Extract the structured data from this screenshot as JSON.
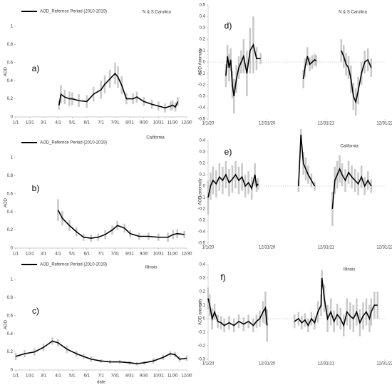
{
  "chart_data": [
    {
      "type": "line",
      "panel_label": "a)",
      "annotation": "N & S Carolina",
      "y_label": "AOD",
      "error_color": "#c8c8c8",
      "xlim": [
        1,
        364
      ],
      "xticks": [
        {
          "value": 1,
          "label": "1/1"
        },
        {
          "value": 31,
          "label": "1/31"
        },
        {
          "value": 60,
          "label": "3/1"
        },
        {
          "value": 91,
          "label": "4/1"
        },
        {
          "value": 121,
          "label": "5/1"
        },
        {
          "value": 152,
          "label": "6/1"
        },
        {
          "value": 182,
          "label": "7/1"
        },
        {
          "value": 212,
          "label": "7/31"
        },
        {
          "value": 243,
          "label": "8/31"
        },
        {
          "value": 273,
          "label": "9/30"
        },
        {
          "value": 304,
          "label": "10/31"
        },
        {
          "value": 334,
          "label": "11/30"
        },
        {
          "value": 364,
          "label": "12/30"
        }
      ],
      "ylim": [
        0,
        1
      ],
      "yticks": [
        0,
        0.2,
        0.4,
        0.6,
        0.8,
        1
      ],
      "x": [
        93,
        97,
        105,
        115,
        121,
        135,
        152,
        166,
        182,
        190,
        201,
        212,
        218,
        226,
        236,
        250,
        258,
        273,
        290,
        304,
        318,
        330,
        334,
        340,
        345
      ],
      "series": [
        {
          "name": "AOD_Refernce Period (2010-2019)",
          "color": "#000000",
          "values": [
            0.13,
            0.25,
            0.22,
            0.2,
            0.2,
            0.18,
            0.17,
            0.25,
            0.3,
            0.36,
            0.42,
            0.48,
            0.44,
            0.35,
            0.2,
            0.2,
            0.22,
            0.17,
            0.14,
            0.12,
            0.1,
            0.12,
            0.13,
            0.11,
            0.17
          ],
          "error": [
            0.05,
            0.1,
            0.08,
            0.08,
            0.07,
            0.07,
            0.07,
            0.08,
            0.1,
            0.1,
            0.1,
            0.12,
            0.12,
            0.1,
            0.06,
            0.06,
            0.06,
            0.05,
            0.05,
            0.05,
            0.05,
            0.05,
            0.05,
            0.05,
            0.05
          ]
        }
      ]
    },
    {
      "type": "line",
      "panel_label": "b)",
      "annotation": "California",
      "y_label": "AOD",
      "error_color": "#c8c8c8",
      "xlim": [
        1,
        364
      ],
      "xticks": [
        {
          "value": 1,
          "label": "1/1"
        },
        {
          "value": 31,
          "label": "1/31"
        },
        {
          "value": 60,
          "label": "3/1"
        },
        {
          "value": 91,
          "label": "4/1"
        },
        {
          "value": 121,
          "label": "5/1"
        },
        {
          "value": 152,
          "label": "6/1"
        },
        {
          "value": 182,
          "label": "7/1"
        },
        {
          "value": 212,
          "label": "7/31"
        },
        {
          "value": 243,
          "label": "8/31"
        },
        {
          "value": 273,
          "label": "9/30"
        },
        {
          "value": 304,
          "label": "10/31"
        },
        {
          "value": 334,
          "label": "11/30"
        },
        {
          "value": 364,
          "label": "12/30"
        }
      ],
      "ylim": [
        0,
        1
      ],
      "yticks": [
        0,
        0.2,
        0.4,
        0.6,
        0.8,
        1
      ],
      "x": [
        91,
        100,
        115,
        130,
        145,
        161,
        176,
        191,
        206,
        217,
        232,
        244,
        263,
        283,
        304,
        324,
        335,
        344,
        359
      ],
      "series": [
        {
          "name": "AOD_Refernce Period (2010-2019)",
          "color": "#000000",
          "values": [
            0.42,
            0.33,
            0.25,
            0.18,
            0.12,
            0.11,
            0.12,
            0.15,
            0.2,
            0.25,
            0.22,
            0.16,
            0.13,
            0.13,
            0.12,
            0.12,
            0.15,
            0.16,
            0.15
          ],
          "error": [
            0.12,
            0.08,
            0.06,
            0.05,
            0.04,
            0.04,
            0.04,
            0.05,
            0.05,
            0.05,
            0.05,
            0.04,
            0.04,
            0.04,
            0.04,
            0.05,
            0.05,
            0.05,
            0.04
          ]
        }
      ]
    },
    {
      "type": "line",
      "panel_label": "c)",
      "annotation": "Illinois",
      "y_label": "AOD",
      "x_label": "date",
      "error_color": "#c8c8c8",
      "xlim": [
        1,
        364
      ],
      "xticks": [
        {
          "value": 1,
          "label": "1/1"
        },
        {
          "value": 31,
          "label": "1/31"
        },
        {
          "value": 60,
          "label": "3/1"
        },
        {
          "value": 91,
          "label": "4/1"
        },
        {
          "value": 121,
          "label": "5/1"
        },
        {
          "value": 152,
          "label": "6/1"
        },
        {
          "value": 182,
          "label": "7/1"
        },
        {
          "value": 212,
          "label": "7/31"
        },
        {
          "value": 243,
          "label": "8/31"
        },
        {
          "value": 273,
          "label": "9/30"
        },
        {
          "value": 304,
          "label": "10/31"
        },
        {
          "value": 334,
          "label": "11/30"
        },
        {
          "value": 364,
          "label": "12/30"
        }
      ],
      "ylim": [
        0,
        1
      ],
      "yticks": [
        0,
        0.2,
        0.4,
        0.6,
        0.8,
        1
      ],
      "x": [
        1,
        20,
        41,
        60,
        79,
        91,
        110,
        130,
        145,
        161,
        182,
        201,
        222,
        243,
        258,
        274,
        293,
        314,
        329,
        339,
        349,
        364
      ],
      "series": [
        {
          "name": "AOD_Refernce Period (2010-2019)",
          "color": "#000000",
          "values": [
            0.15,
            0.18,
            0.2,
            0.25,
            0.32,
            0.3,
            0.23,
            0.18,
            0.15,
            0.12,
            0.1,
            0.09,
            0.09,
            0.08,
            0.07,
            0.08,
            0.1,
            0.14,
            0.18,
            0.17,
            0.12,
            0.13
          ],
          "error": [
            0.04,
            0.04,
            0.04,
            0.04,
            0.04,
            0.04,
            0.04,
            0.03,
            0.03,
            0.03,
            0.02,
            0.02,
            0.02,
            0.02,
            0.02,
            0.02,
            0.03,
            0.03,
            0.03,
            0.03,
            0.03,
            0.03
          ]
        }
      ]
    },
    {
      "type": "line",
      "panel_label": "d)",
      "annotation": "N & S Carolina",
      "y_label": "AOD Anomaly",
      "color": "#000000",
      "error_color": "#c8c8c8",
      "xlim": [
        0,
        1095
      ],
      "xticks": [
        {
          "value": 0,
          "label": "1/1/20"
        },
        {
          "value": 365,
          "label": "12/31/20"
        },
        {
          "value": 730,
          "label": "12/31/21"
        },
        {
          "value": 1095,
          "label": "12/31/22"
        }
      ],
      "ylim": [
        -0.5,
        0.5
      ],
      "yticks": [
        -0.5,
        -0.4,
        -0.3,
        -0.2,
        -0.1,
        0,
        0.1,
        0.2,
        0.3,
        0.4,
        0.5
      ],
      "x": [
        110,
        120,
        130,
        140,
        150,
        160,
        175,
        190,
        205,
        220,
        240,
        260,
        280,
        300,
        325,
        450,
        590,
        600,
        615,
        630,
        645,
        660,
        670,
        750,
        825,
        840,
        855,
        870,
        885,
        900,
        915,
        930,
        950,
        970,
        990,
        1010
      ],
      "values": [
        -0.12,
        0.05,
        -0.05,
        0.02,
        -0.2,
        -0.3,
        -0.15,
        -0.05,
        0,
        0.05,
        -0.1,
        0.1,
        0.15,
        0.03,
        0.03,
        null,
        -0.15,
        -0.05,
        0.05,
        -0.02,
        0,
        0.02,
        0.01,
        null,
        0.1,
        0.05,
        -0.02,
        -0.05,
        -0.15,
        -0.3,
        -0.35,
        -0.25,
        -0.1,
        0,
        0.02,
        -0.05
      ],
      "error": [
        0.1,
        0.1,
        0.12,
        0.1,
        0.12,
        0.15,
        0.12,
        0.1,
        0.1,
        0.15,
        0.2,
        0.2,
        0.25,
        0.1,
        0.05,
        null,
        0.08,
        0.08,
        0.08,
        0.06,
        0.06,
        0.05,
        0.05,
        null,
        0.1,
        0.1,
        0.1,
        0.1,
        0.12,
        0.12,
        0.12,
        0.12,
        0.1,
        0.1,
        0.1,
        0.08
      ]
    },
    {
      "type": "line",
      "panel_label": "e)",
      "annotation": "California",
      "y_label": "AOD anomaly",
      "color": "#000000",
      "error_color": "#c8c8c8",
      "xlim": [
        0,
        1095
      ],
      "xticks": [
        {
          "value": 0,
          "label": "1/1/20"
        },
        {
          "value": 365,
          "label": "12/31/20"
        },
        {
          "value": 730,
          "label": "12/31/21"
        },
        {
          "value": 1095,
          "label": "12/31/22"
        }
      ],
      "ylim": [
        -0.5,
        0.4
      ],
      "yticks": [
        -0.5,
        -0.4,
        -0.3,
        -0.2,
        -0.1,
        0,
        0.1,
        0.2,
        0.3,
        0.4
      ],
      "x": [
        0,
        15,
        30,
        50,
        70,
        90,
        110,
        130,
        150,
        170,
        190,
        210,
        230,
        250,
        270,
        290,
        300,
        310,
        450,
        560,
        575,
        590,
        605,
        620,
        640,
        660,
        700,
        770,
        785,
        800,
        815,
        830,
        850,
        870,
        890,
        910,
        930,
        950,
        970,
        990,
        1010
      ],
      "values": [
        -0.1,
        0,
        0.05,
        0.02,
        0.08,
        0.05,
        0.1,
        0.03,
        0.06,
        0.1,
        0.05,
        0.08,
        0,
        0.03,
        -0.02,
        0.1,
        0,
        0.02,
        null,
        0,
        0.45,
        0.2,
        0.15,
        0.1,
        0.05,
        0,
        null,
        -0.2,
        0.05,
        0.1,
        0.15,
        0.1,
        0.05,
        0.12,
        0.08,
        0.05,
        0.02,
        0.08,
        0,
        0.05,
        0
      ],
      "error": [
        0.15,
        0.12,
        0.12,
        0.12,
        0.12,
        0.12,
        0.12,
        0.12,
        0.12,
        0.12,
        0.12,
        0.12,
        0.1,
        0.1,
        0.1,
        0.1,
        0.05,
        0.05,
        null,
        0.05,
        0.05,
        0.1,
        0.1,
        0.08,
        0.06,
        0.04,
        null,
        0.15,
        0.12,
        0.12,
        0.12,
        0.1,
        0.1,
        0.1,
        0.1,
        0.1,
        0.1,
        0.1,
        0.08,
        0.08,
        0.06
      ]
    },
    {
      "type": "line",
      "panel_label": "f)",
      "annotation": "Illinois",
      "y_label": "AOD anomaly",
      "color": "#000000",
      "error_color": "#c8c8c8",
      "xlim": [
        0,
        1095
      ],
      "xticks": [
        {
          "value": 0,
          "label": "1/1/20"
        },
        {
          "value": 365,
          "label": "12/31/20"
        },
        {
          "value": 730,
          "label": "12/31/21"
        },
        {
          "value": 1095,
          "label": "12/31/22"
        }
      ],
      "ylim": [
        -0.3,
        0.4
      ],
      "yticks": [
        -0.3,
        -0.2,
        -0.1,
        0,
        0.1,
        0.2,
        0.3,
        0.4
      ],
      "x": [
        0,
        10,
        25,
        40,
        60,
        80,
        100,
        130,
        160,
        190,
        220,
        250,
        280,
        300,
        320,
        340,
        355,
        365,
        450,
        535,
        560,
        580,
        600,
        620,
        640,
        660,
        680,
        700,
        705,
        720,
        740,
        760,
        780,
        800,
        820,
        840,
        860,
        880,
        900,
        920,
        940,
        960,
        980,
        1000,
        1010,
        1030,
        1050
      ],
      "values": [
        0.15,
        0.1,
        0,
        0.05,
        -0.02,
        -0.03,
        -0.05,
        -0.03,
        -0.05,
        -0.02,
        -0.04,
        -0.02,
        -0.05,
        -0.02,
        0,
        0.05,
        0.08,
        -0.05,
        null,
        -0.02,
        0,
        -0.03,
        -0.01,
        -0.05,
        0,
        -0.03,
        0.05,
        0.1,
        0.3,
        0.15,
        0,
        0.05,
        -0.02,
        0.03,
        0,
        -0.05,
        0.05,
        0.02,
        0,
        0.05,
        -0.03,
        0.02,
        0.05,
        0,
        0.05,
        0.1,
        0.1
      ],
      "error": [
        0.08,
        0.08,
        0.08,
        0.06,
        0.05,
        0.05,
        0.05,
        0.05,
        0.05,
        0.05,
        0.05,
        0.05,
        0.05,
        0.05,
        0.06,
        0.08,
        0.12,
        0.12,
        null,
        0.05,
        0.05,
        0.05,
        0.05,
        0.05,
        0.05,
        0.05,
        0.08,
        0.08,
        0.06,
        0.1,
        0.1,
        0.1,
        0.08,
        0.08,
        0.08,
        0.08,
        0.1,
        0.1,
        0.1,
        0.1,
        0.1,
        0.1,
        0.1,
        0.1,
        0.1,
        0.1,
        0.1
      ]
    }
  ]
}
